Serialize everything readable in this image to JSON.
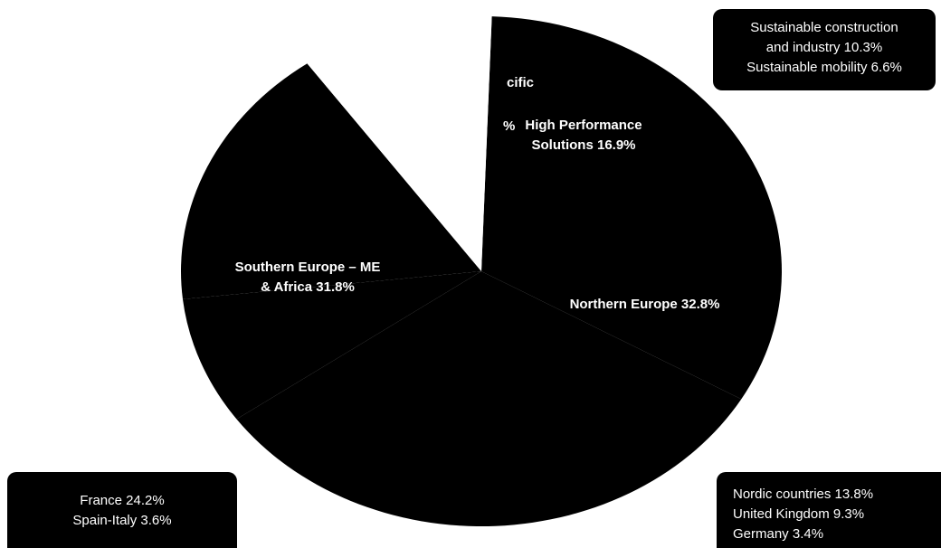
{
  "chart_data": {
    "type": "pie",
    "title": "",
    "slices": [
      {
        "label": "Northern Europe 32.8%",
        "value": 32.8
      },
      {
        "label": "Southern Europe – ME & Africa 31.8%",
        "value": 31.8
      },
      {
        "label": "Asia-Pacific",
        "value": 8.1
      },
      {
        "label": "High Performance Solutions 16.9%",
        "value": 16.9
      },
      {
        "label": "Sustainable construction and industry 10.3% / Sustainable mobility 6.6%",
        "value": 10.4
      }
    ],
    "slice_colors": [
      "#000000",
      "#000000",
      "#000000",
      "#000000",
      "#ffffff"
    ]
  },
  "labels": {
    "asia_pacific_partial_1": "cific",
    "asia_pacific_partial_2": "%",
    "high_performance": "High Performance\nSolutions 16.9%",
    "southern_europe": "Southern Europe – ME\n& Africa 31.8%",
    "northern_europe": "Northern Europe 32.8%"
  },
  "callouts": {
    "hps_breakdown": [
      "Sustainable construction",
      "and industry 10.3%",
      "Sustainable mobility 6.6%"
    ],
    "southern_breakdown": [
      "France 24.2%",
      "Spain-Italy 3.6%"
    ],
    "northern_breakdown": [
      "Nordic countries 13.8%",
      "United Kingdom 9.3%",
      "Germany 3.4%"
    ]
  },
  "colors": {
    "pie_fill": "#000000",
    "label_text": "#ffffff",
    "background": "#ffffff"
  }
}
